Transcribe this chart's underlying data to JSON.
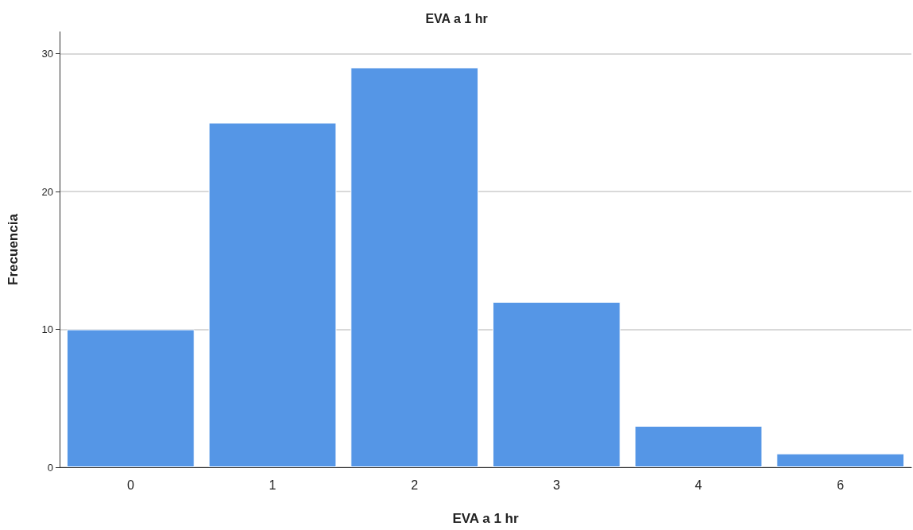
{
  "chart_data": {
    "type": "bar",
    "title": "EVA a 1 hr",
    "xlabel": "EVA a 1 hr",
    "ylabel": "Frecuencia",
    "categories": [
      "0",
      "1",
      "2",
      "3",
      "4",
      "6"
    ],
    "values": [
      10,
      25,
      29,
      12,
      3,
      1
    ],
    "color": "#5596e6",
    "ylim": [
      0,
      31.6
    ],
    "yticks": [
      0,
      10,
      20,
      30
    ],
    "grid": "y"
  }
}
